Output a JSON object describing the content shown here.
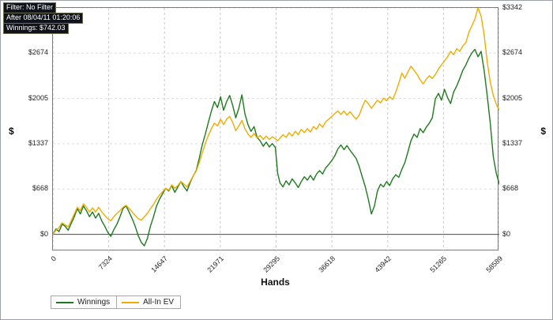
{
  "info": {
    "lines": [
      "Filter: No Filter",
      "After 08/04/11 01:20:06",
      "Winnings: $742.03"
    ]
  },
  "chart_data": {
    "type": "line",
    "title": "",
    "xlabel": "Hands",
    "ylabel_left": "$",
    "ylabel_right": "$",
    "xlim": [
      0,
      58589
    ],
    "ylim": [
      -250,
      3342
    ],
    "grid": "dashed",
    "legend_position": "bottom-left",
    "xticks": [
      0,
      7324,
      14647,
      21971,
      29295,
      36618,
      43942,
      51265,
      58589
    ],
    "xtick_labels": [
      "0",
      "7324",
      "14647",
      "21971",
      "29295",
      "36618",
      "43942",
      "51265",
      "58589"
    ],
    "yticks": [
      0,
      668,
      1337,
      2005,
      2674,
      3342
    ],
    "ytick_labels": [
      "$0",
      "$668",
      "$1337",
      "$2005",
      "$2674",
      "$3342"
    ],
    "series": [
      {
        "name": "Winnings",
        "color": "#1f7a1f",
        "points": [
          [
            0,
            0
          ],
          [
            400,
            80
          ],
          [
            800,
            40
          ],
          [
            1200,
            150
          ],
          [
            1600,
            120
          ],
          [
            2000,
            60
          ],
          [
            2400,
            160
          ],
          [
            2800,
            260
          ],
          [
            3200,
            380
          ],
          [
            3600,
            300
          ],
          [
            4000,
            420
          ],
          [
            4400,
            350
          ],
          [
            4800,
            260
          ],
          [
            5200,
            330
          ],
          [
            5600,
            240
          ],
          [
            6000,
            310
          ],
          [
            6400,
            200
          ],
          [
            6800,
            120
          ],
          [
            7200,
            30
          ],
          [
            7600,
            -30
          ],
          [
            8000,
            70
          ],
          [
            8400,
            150
          ],
          [
            8800,
            260
          ],
          [
            9200,
            380
          ],
          [
            9600,
            420
          ],
          [
            10000,
            330
          ],
          [
            10400,
            230
          ],
          [
            10800,
            120
          ],
          [
            11200,
            -20
          ],
          [
            11600,
            -120
          ],
          [
            12000,
            -170
          ],
          [
            12400,
            -60
          ],
          [
            12800,
            120
          ],
          [
            13200,
            260
          ],
          [
            13600,
            420
          ],
          [
            14000,
            520
          ],
          [
            14400,
            600
          ],
          [
            14800,
            680
          ],
          [
            15200,
            640
          ],
          [
            15600,
            720
          ],
          [
            16000,
            620
          ],
          [
            16400,
            700
          ],
          [
            16800,
            780
          ],
          [
            17200,
            700
          ],
          [
            17600,
            640
          ],
          [
            18000,
            760
          ],
          [
            18400,
            860
          ],
          [
            18800,
            940
          ],
          [
            19200,
            1120
          ],
          [
            19600,
            1320
          ],
          [
            20000,
            1480
          ],
          [
            20400,
            1650
          ],
          [
            20800,
            1820
          ],
          [
            21200,
            1960
          ],
          [
            21600,
            1870
          ],
          [
            22000,
            2030
          ],
          [
            22400,
            1830
          ],
          [
            22800,
            1960
          ],
          [
            23200,
            2050
          ],
          [
            23600,
            1900
          ],
          [
            24000,
            1720
          ],
          [
            24400,
            1860
          ],
          [
            24800,
            2060
          ],
          [
            25200,
            1780
          ],
          [
            25600,
            1620
          ],
          [
            26000,
            1520
          ],
          [
            26400,
            1590
          ],
          [
            26800,
            1430
          ],
          [
            27200,
            1380
          ],
          [
            27600,
            1300
          ],
          [
            28000,
            1360
          ],
          [
            28400,
            1290
          ],
          [
            28800,
            1340
          ],
          [
            29200,
            1280
          ],
          [
            29500,
            900
          ],
          [
            29800,
            760
          ],
          [
            30200,
            700
          ],
          [
            30600,
            790
          ],
          [
            31000,
            730
          ],
          [
            31400,
            820
          ],
          [
            31800,
            760
          ],
          [
            32200,
            690
          ],
          [
            32600,
            780
          ],
          [
            33000,
            850
          ],
          [
            33400,
            800
          ],
          [
            33800,
            870
          ],
          [
            34200,
            800
          ],
          [
            34600,
            890
          ],
          [
            35000,
            940
          ],
          [
            35400,
            890
          ],
          [
            35800,
            980
          ],
          [
            36200,
            1030
          ],
          [
            36600,
            1090
          ],
          [
            37000,
            1160
          ],
          [
            37400,
            1260
          ],
          [
            37800,
            1320
          ],
          [
            38200,
            1250
          ],
          [
            38600,
            1310
          ],
          [
            39000,
            1240
          ],
          [
            39400,
            1180
          ],
          [
            39800,
            1120
          ],
          [
            40200,
            1000
          ],
          [
            40600,
            850
          ],
          [
            41000,
            700
          ],
          [
            41400,
            520
          ],
          [
            41800,
            300
          ],
          [
            42200,
            420
          ],
          [
            42600,
            640
          ],
          [
            43000,
            740
          ],
          [
            43400,
            700
          ],
          [
            43800,
            780
          ],
          [
            44200,
            720
          ],
          [
            44600,
            820
          ],
          [
            45000,
            880
          ],
          [
            45400,
            840
          ],
          [
            45800,
            960
          ],
          [
            46200,
            1060
          ],
          [
            46600,
            1220
          ],
          [
            47000,
            1380
          ],
          [
            47400,
            1480
          ],
          [
            47800,
            1430
          ],
          [
            48200,
            1560
          ],
          [
            48600,
            1500
          ],
          [
            49000,
            1580
          ],
          [
            49400,
            1640
          ],
          [
            49800,
            1720
          ],
          [
            50200,
            2000
          ],
          [
            50600,
            2080
          ],
          [
            51000,
            1980
          ],
          [
            51400,
            2140
          ],
          [
            51800,
            2020
          ],
          [
            52200,
            1930
          ],
          [
            52600,
            2100
          ],
          [
            53000,
            2190
          ],
          [
            53400,
            2300
          ],
          [
            53800,
            2420
          ],
          [
            54200,
            2500
          ],
          [
            54600,
            2600
          ],
          [
            55000,
            2680
          ],
          [
            55400,
            2730
          ],
          [
            55800,
            2620
          ],
          [
            56200,
            2700
          ],
          [
            56600,
            2420
          ],
          [
            57000,
            2050
          ],
          [
            57400,
            1650
          ],
          [
            57800,
            1150
          ],
          [
            58200,
            900
          ],
          [
            58589,
            742
          ]
        ]
      },
      {
        "name": "All-In EV",
        "color": "#f0ad00",
        "points": [
          [
            0,
            0
          ],
          [
            400,
            60
          ],
          [
            800,
            100
          ],
          [
            1200,
            170
          ],
          [
            1600,
            140
          ],
          [
            2000,
            110
          ],
          [
            2400,
            200
          ],
          [
            2800,
            300
          ],
          [
            3200,
            400
          ],
          [
            3600,
            350
          ],
          [
            4000,
            450
          ],
          [
            4400,
            400
          ],
          [
            4800,
            330
          ],
          [
            5200,
            390
          ],
          [
            5600,
            330
          ],
          [
            6000,
            400
          ],
          [
            6400,
            330
          ],
          [
            6800,
            280
          ],
          [
            7200,
            230
          ],
          [
            7600,
            200
          ],
          [
            8000,
            260
          ],
          [
            8400,
            310
          ],
          [
            8800,
            350
          ],
          [
            9200,
            400
          ],
          [
            9600,
            430
          ],
          [
            10000,
            380
          ],
          [
            10400,
            330
          ],
          [
            10800,
            280
          ],
          [
            11200,
            230
          ],
          [
            11600,
            210
          ],
          [
            12000,
            260
          ],
          [
            12400,
            310
          ],
          [
            12800,
            380
          ],
          [
            13200,
            440
          ],
          [
            13600,
            520
          ],
          [
            14000,
            580
          ],
          [
            14400,
            630
          ],
          [
            14800,
            680
          ],
          [
            15200,
            650
          ],
          [
            15600,
            730
          ],
          [
            16000,
            680
          ],
          [
            16400,
            720
          ],
          [
            16800,
            780
          ],
          [
            17200,
            740
          ],
          [
            17600,
            700
          ],
          [
            18000,
            780
          ],
          [
            18400,
            860
          ],
          [
            18800,
            930
          ],
          [
            19200,
            1060
          ],
          [
            19600,
            1200
          ],
          [
            20000,
            1340
          ],
          [
            20400,
            1460
          ],
          [
            20800,
            1560
          ],
          [
            21200,
            1640
          ],
          [
            21600,
            1600
          ],
          [
            22000,
            1700
          ],
          [
            22400,
            1620
          ],
          [
            22800,
            1700
          ],
          [
            23200,
            1740
          ],
          [
            23600,
            1650
          ],
          [
            24000,
            1530
          ],
          [
            24400,
            1600
          ],
          [
            24800,
            1680
          ],
          [
            25200,
            1560
          ],
          [
            25600,
            1480
          ],
          [
            26000,
            1430
          ],
          [
            26400,
            1490
          ],
          [
            26800,
            1420
          ],
          [
            27200,
            1460
          ],
          [
            27600,
            1400
          ],
          [
            28000,
            1450
          ],
          [
            28400,
            1400
          ],
          [
            28800,
            1440
          ],
          [
            29200,
            1410
          ],
          [
            29500,
            1380
          ],
          [
            29800,
            1420
          ],
          [
            30200,
            1470
          ],
          [
            30600,
            1430
          ],
          [
            31000,
            1500
          ],
          [
            31400,
            1450
          ],
          [
            31800,
            1520
          ],
          [
            32200,
            1470
          ],
          [
            32600,
            1550
          ],
          [
            33000,
            1500
          ],
          [
            33400,
            1560
          ],
          [
            33800,
            1510
          ],
          [
            34200,
            1590
          ],
          [
            34600,
            1550
          ],
          [
            35000,
            1630
          ],
          [
            35400,
            1580
          ],
          [
            35800,
            1660
          ],
          [
            36200,
            1700
          ],
          [
            36600,
            1740
          ],
          [
            37000,
            1780
          ],
          [
            37400,
            1820
          ],
          [
            37800,
            1770
          ],
          [
            38200,
            1820
          ],
          [
            38600,
            1760
          ],
          [
            39000,
            1810
          ],
          [
            39400,
            1750
          ],
          [
            39800,
            1700
          ],
          [
            40200,
            1760
          ],
          [
            40600,
            1880
          ],
          [
            41000,
            1980
          ],
          [
            41400,
            1930
          ],
          [
            41800,
            1860
          ],
          [
            42200,
            1920
          ],
          [
            42600,
            1980
          ],
          [
            43000,
            1940
          ],
          [
            43400,
            2010
          ],
          [
            43800,
            1970
          ],
          [
            44200,
            2030
          ],
          [
            44600,
            1990
          ],
          [
            45000,
            2100
          ],
          [
            45400,
            2230
          ],
          [
            45800,
            2380
          ],
          [
            46200,
            2300
          ],
          [
            46600,
            2400
          ],
          [
            47000,
            2480
          ],
          [
            47400,
            2420
          ],
          [
            47800,
            2360
          ],
          [
            48200,
            2280
          ],
          [
            48600,
            2220
          ],
          [
            49000,
            2290
          ],
          [
            49400,
            2340
          ],
          [
            49800,
            2300
          ],
          [
            50200,
            2360
          ],
          [
            50600,
            2440
          ],
          [
            51000,
            2500
          ],
          [
            51400,
            2560
          ],
          [
            51800,
            2620
          ],
          [
            52200,
            2700
          ],
          [
            52600,
            2650
          ],
          [
            53000,
            2740
          ],
          [
            53400,
            2700
          ],
          [
            53800,
            2780
          ],
          [
            54200,
            2830
          ],
          [
            54600,
            2980
          ],
          [
            55000,
            3080
          ],
          [
            55400,
            3180
          ],
          [
            55800,
            3342
          ],
          [
            56200,
            3220
          ],
          [
            56600,
            2950
          ],
          [
            57000,
            2550
          ],
          [
            57400,
            2250
          ],
          [
            57800,
            2050
          ],
          [
            58200,
            1920
          ],
          [
            58589,
            1830
          ]
        ]
      }
    ]
  }
}
